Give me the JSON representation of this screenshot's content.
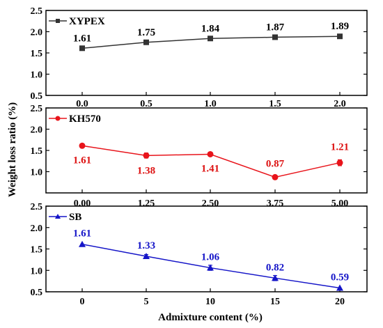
{
  "figure": {
    "ylabel": "Weight loss ratio (%)",
    "xlabel": "Admixture content (%)"
  },
  "chart_data": [
    {
      "type": "line",
      "series": [
        {
          "name": "XYPEX",
          "values": [
            1.61,
            1.75,
            1.84,
            1.87,
            1.89
          ],
          "color": "#333333",
          "marker": "square",
          "errors": [
            0,
            0,
            0,
            0,
            0
          ]
        }
      ],
      "categories": [
        "0.0",
        "0.5",
        "1.0",
        "1.5",
        "2.0"
      ],
      "data_labels": [
        "1.61",
        "1.75",
        "1.84",
        "1.87",
        "1.89"
      ],
      "label_color": "#000000",
      "ylim": [
        0.5,
        2.5
      ],
      "yticks": [
        "0.5",
        "1.0",
        "1.5",
        "2.0",
        "2.5"
      ],
      "legend": "top-left",
      "grid": false
    },
    {
      "type": "line",
      "series": [
        {
          "name": "KH570",
          "values": [
            1.61,
            1.38,
            1.41,
            0.87,
            1.21
          ],
          "color": "#e8141b",
          "marker": "circle",
          "errors": [
            0,
            0.06,
            0,
            0.04,
            0.07
          ]
        }
      ],
      "categories": [
        "0.00",
        "1.25",
        "2.50",
        "3.75",
        "5.00"
      ],
      "data_labels": [
        "1.61",
        "1.38",
        "1.41",
        "0.87",
        "1.21"
      ],
      "label_color": "#dd1111",
      "ylim": [
        0.5,
        2.5
      ],
      "yticks": [
        "1.0",
        "1.5",
        "2.0",
        "2.5"
      ],
      "legend": "top-left",
      "grid": false
    },
    {
      "type": "line",
      "series": [
        {
          "name": "SB",
          "values": [
            1.61,
            1.33,
            1.06,
            0.82,
            0.59
          ],
          "color": "#1515c8",
          "marker": "triangle",
          "errors": [
            0,
            0.04,
            0.06,
            0.06,
            0
          ]
        }
      ],
      "categories": [
        "0",
        "5",
        "10",
        "15",
        "20"
      ],
      "data_labels": [
        "1.61",
        "1.33",
        "1.06",
        "0.82",
        "0.59"
      ],
      "label_color": "#1515c8",
      "ylim": [
        0.5,
        2.5
      ],
      "yticks": [
        "0.5",
        "1.0",
        "1.5",
        "2.0",
        "2.5"
      ],
      "legend": "top-left",
      "grid": false
    }
  ]
}
